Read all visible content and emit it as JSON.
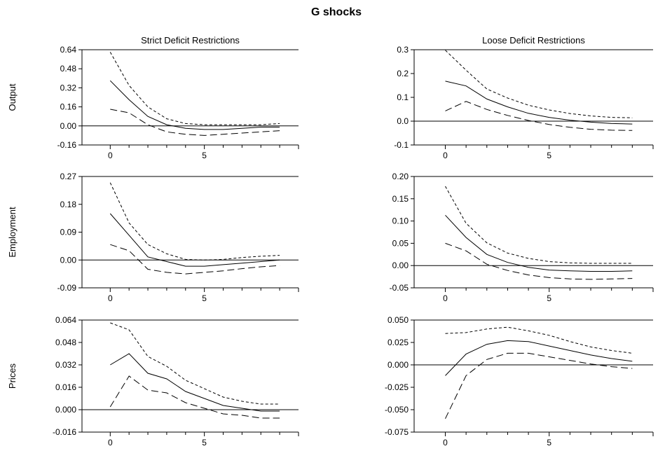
{
  "figure": {
    "title": "G shocks"
  },
  "chart_data": [
    {
      "type": "line",
      "row": 0,
      "col": 0,
      "title": "Strict Deficit Restrictions",
      "ylabel": "Output",
      "x": [
        0,
        1,
        2,
        3,
        4,
        5,
        6,
        7,
        8,
        9
      ],
      "xlim": [
        -1.5,
        10
      ],
      "ylim": [
        -0.16,
        0.64
      ],
      "yticks": [
        -0.16,
        0.0,
        0.16,
        0.32,
        0.48,
        0.64
      ],
      "ytick_labels": [
        "-0.16",
        "0.00",
        "0.16",
        "0.32",
        "0.48",
        "0.64"
      ],
      "xticks": [
        0,
        5
      ],
      "xtick_labels": [
        "0",
        "5"
      ],
      "series": [
        {
          "style": "solid",
          "values": [
            0.38,
            0.22,
            0.08,
            0.01,
            -0.02,
            -0.03,
            -0.03,
            -0.02,
            -0.01,
            -0.01
          ]
        },
        {
          "style": "short-dash",
          "values": [
            0.62,
            0.34,
            0.16,
            0.06,
            0.02,
            0.01,
            0.01,
            0.01,
            0.01,
            0.02
          ]
        },
        {
          "style": "long-dash",
          "values": [
            0.14,
            0.11,
            0.01,
            -0.05,
            -0.07,
            -0.08,
            -0.07,
            -0.06,
            -0.05,
            -0.04
          ]
        }
      ]
    },
    {
      "type": "line",
      "row": 0,
      "col": 1,
      "title": "Loose Deficit Restrictions",
      "ylabel": "",
      "x": [
        0,
        1,
        2,
        3,
        4,
        5,
        6,
        7,
        8,
        9
      ],
      "xlim": [
        -1.5,
        10
      ],
      "ylim": [
        -0.1,
        0.3
      ],
      "yticks": [
        -0.1,
        0.0,
        0.1,
        0.2,
        0.3
      ],
      "ytick_labels": [
        "-0.1",
        "0.0",
        "0.1",
        "0.2",
        "0.3"
      ],
      "xticks": [
        0,
        5
      ],
      "xtick_labels": [
        "0",
        "5"
      ],
      "series": [
        {
          "style": "solid",
          "values": [
            0.168,
            0.148,
            0.093,
            0.06,
            0.033,
            0.016,
            0.004,
            -0.004,
            -0.01,
            -0.012
          ]
        },
        {
          "style": "short-dash",
          "values": [
            0.298,
            0.214,
            0.135,
            0.097,
            0.067,
            0.047,
            0.032,
            0.022,
            0.016,
            0.014
          ]
        },
        {
          "style": "long-dash",
          "values": [
            0.043,
            0.083,
            0.049,
            0.024,
            0.003,
            -0.014,
            -0.026,
            -0.034,
            -0.038,
            -0.039
          ]
        }
      ]
    },
    {
      "type": "line",
      "row": 1,
      "col": 0,
      "title": "",
      "ylabel": "Employment",
      "x": [
        0,
        1,
        2,
        3,
        4,
        5,
        6,
        7,
        8,
        9
      ],
      "xlim": [
        -1.5,
        10
      ],
      "ylim": [
        -0.09,
        0.27
      ],
      "yticks": [
        -0.09,
        0.0,
        0.09,
        0.18,
        0.27
      ],
      "ytick_labels": [
        "-0.09",
        "0.00",
        "0.09",
        "0.18",
        "0.27"
      ],
      "xticks": [
        0,
        5
      ],
      "xtick_labels": [
        "0",
        "5"
      ],
      "series": [
        {
          "style": "solid",
          "values": [
            0.15,
            0.08,
            0.01,
            -0.005,
            -0.02,
            -0.02,
            -0.015,
            -0.01,
            -0.005,
            0.0
          ]
        },
        {
          "style": "short-dash",
          "values": [
            0.25,
            0.12,
            0.05,
            0.02,
            0.002,
            0.0,
            0.002,
            0.008,
            0.012,
            0.015
          ]
        },
        {
          "style": "long-dash",
          "values": [
            0.05,
            0.03,
            -0.03,
            -0.04,
            -0.045,
            -0.04,
            -0.035,
            -0.028,
            -0.022,
            -0.018
          ]
        }
      ]
    },
    {
      "type": "line",
      "row": 1,
      "col": 1,
      "title": "",
      "ylabel": "",
      "x": [
        0,
        1,
        2,
        3,
        4,
        5,
        6,
        7,
        8,
        9
      ],
      "xlim": [
        -1.5,
        10
      ],
      "ylim": [
        -0.05,
        0.2
      ],
      "yticks": [
        -0.05,
        0.0,
        0.05,
        0.1,
        0.15,
        0.2
      ],
      "ytick_labels": [
        "-0.05",
        "0.00",
        "0.05",
        "0.10",
        "0.15",
        "0.20"
      ],
      "xticks": [
        0,
        5
      ],
      "xtick_labels": [
        "0",
        "5"
      ],
      "series": [
        {
          "style": "solid",
          "values": [
            0.113,
            0.063,
            0.025,
            0.007,
            -0.004,
            -0.01,
            -0.012,
            -0.013,
            -0.013,
            -0.012
          ]
        },
        {
          "style": "short-dash",
          "values": [
            0.178,
            0.095,
            0.051,
            0.028,
            0.016,
            0.009,
            0.006,
            0.005,
            0.005,
            0.005
          ]
        },
        {
          "style": "long-dash",
          "values": [
            0.05,
            0.033,
            0.003,
            -0.011,
            -0.021,
            -0.027,
            -0.03,
            -0.031,
            -0.03,
            -0.029
          ]
        }
      ]
    },
    {
      "type": "line",
      "row": 2,
      "col": 0,
      "title": "",
      "ylabel": "Prices",
      "x": [
        0,
        1,
        2,
        3,
        4,
        5,
        6,
        7,
        8,
        9
      ],
      "xlim": [
        -1.5,
        10
      ],
      "ylim": [
        -0.016,
        0.064
      ],
      "yticks": [
        -0.016,
        0.0,
        0.016,
        0.032,
        0.048,
        0.064
      ],
      "ytick_labels": [
        "-0.016",
        "0.000",
        "0.016",
        "0.032",
        "0.048",
        "0.064"
      ],
      "xticks": [
        0,
        5
      ],
      "xtick_labels": [
        "0",
        "5"
      ],
      "series": [
        {
          "style": "solid",
          "values": [
            0.032,
            0.04,
            0.026,
            0.022,
            0.013,
            0.008,
            0.003,
            0.001,
            -0.001,
            -0.001
          ]
        },
        {
          "style": "short-dash",
          "values": [
            0.062,
            0.057,
            0.038,
            0.031,
            0.021,
            0.015,
            0.009,
            0.006,
            0.004,
            0.004
          ]
        },
        {
          "style": "long-dash",
          "values": [
            0.002,
            0.024,
            0.014,
            0.012,
            0.005,
            0.001,
            -0.003,
            -0.004,
            -0.006,
            -0.006
          ]
        }
      ]
    },
    {
      "type": "line",
      "row": 2,
      "col": 1,
      "title": "",
      "ylabel": "",
      "x": [
        0,
        1,
        2,
        3,
        4,
        5,
        6,
        7,
        8,
        9
      ],
      "xlim": [
        -1.5,
        10
      ],
      "ylim": [
        -0.075,
        0.05
      ],
      "yticks": [
        -0.075,
        -0.05,
        -0.025,
        0.0,
        0.025,
        0.05
      ],
      "ytick_labels": [
        "-0.075",
        "-0.050",
        "-0.025",
        "0.000",
        "0.025",
        "0.050"
      ],
      "xticks": [
        0,
        5
      ],
      "xtick_labels": [
        "0",
        "5"
      ],
      "series": [
        {
          "style": "solid",
          "values": [
            -0.012,
            0.012,
            0.023,
            0.027,
            0.026,
            0.021,
            0.016,
            0.011,
            0.007,
            0.004
          ]
        },
        {
          "style": "short-dash",
          "values": [
            0.035,
            0.036,
            0.04,
            0.042,
            0.038,
            0.033,
            0.026,
            0.02,
            0.016,
            0.013
          ]
        },
        {
          "style": "long-dash",
          "values": [
            -0.06,
            -0.012,
            0.006,
            0.013,
            0.013,
            0.009,
            0.005,
            0.001,
            -0.002,
            -0.004
          ]
        }
      ]
    }
  ]
}
